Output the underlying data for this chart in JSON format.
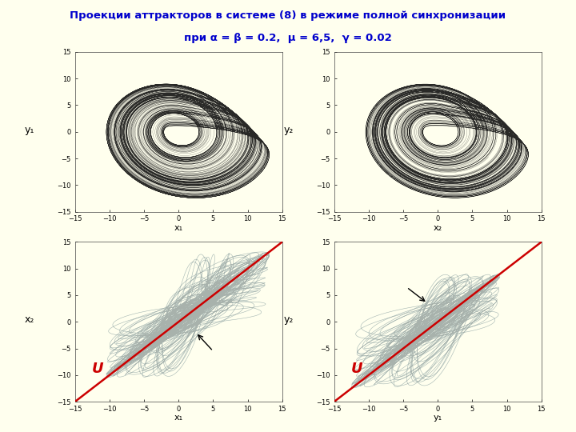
{
  "title_line1": "Проекции аттракторов в системе (8) в режиме полной синхронизации",
  "title_line2": "при α = β = 0.2,  μ = 6,5,  γ = 0.02",
  "bg_color": "#ffffee",
  "title_color": "#0000cc",
  "axis_range": [
    -15,
    15
  ],
  "axis_ticks": [
    -15,
    -10,
    -5,
    0,
    5,
    10,
    15
  ],
  "subplot_labels": [
    {
      "ylabel": "y₁",
      "xlabel": "x₁"
    },
    {
      "ylabel": "y₂",
      "xlabel": "x₂"
    },
    {
      "ylabel": "x₂",
      "xlabel": "x₁",
      "annot": "U"
    },
    {
      "ylabel": "y₂",
      "xlabel": "y₁",
      "annot": "U"
    }
  ],
  "attractor_color": "#111111",
  "sync_line_color": "#cc0000",
  "lissajous_color": "#888888",
  "lissajous_color2": "#aacccc",
  "U_color": "#cc0000",
  "alpha_param": 0.2,
  "beta_param": 0.2,
  "mu_param": 6.5,
  "gamma_param": 0.02
}
